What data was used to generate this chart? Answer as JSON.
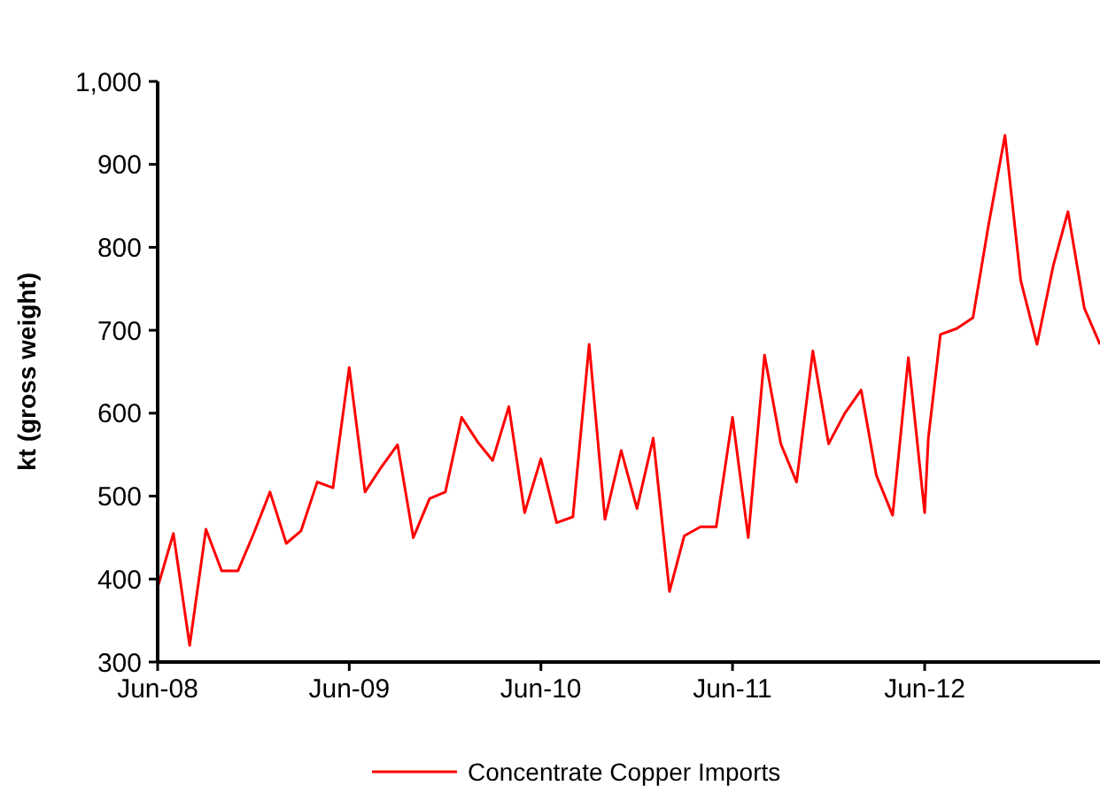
{
  "chart_data": {
    "type": "line",
    "ylabel": "kt (gross weight)",
    "x": [
      "2008-06-01",
      "2008-07-01",
      "2008-08-01",
      "2008-09-01",
      "2008-10-01",
      "2008-11-01",
      "2008-12-01",
      "2009-01-01",
      "2009-02-01",
      "2009-03-01",
      "2009-04-01",
      "2009-05-01",
      "2009-06-01",
      "2009-07-01",
      "2009-08-01",
      "2009-09-01",
      "2009-10-01",
      "2009-11-01",
      "2009-12-01",
      "2010-01-01",
      "2010-02-01",
      "2010-03-01",
      "2010-04-01",
      "2010-05-01",
      "2010-06-01",
      "2010-07-01",
      "2010-08-01",
      "2010-09-01",
      "2010-10-01",
      "2010-11-01",
      "2010-12-01",
      "2011-01-01",
      "2011-02-01",
      "2011-03-01",
      "2011-04-01",
      "2011-05-01",
      "2011-06-01",
      "2011-07-01",
      "2011-08-01",
      "2011-09-01",
      "2011-10-01",
      "2011-11-01",
      "2011-12-01",
      "2012-01-01",
      "2012-02-01",
      "2012-03-01",
      "2012-04-01",
      "2012-05-01",
      "2012-06-01",
      "2012-06-08",
      "2012-07-01",
      "2012-08-01",
      "2012-09-01",
      "2012-10-01",
      "2012-11-01",
      "2012-12-01",
      "2013-01-01",
      "2013-02-01",
      "2013-03-01",
      "2013-04-01",
      "2013-05-01"
    ],
    "series": [
      {
        "name": "Concentrate Copper Imports",
        "color": "#ff0000",
        "values": [
          390,
          455,
          320,
          460,
          410,
          410,
          455,
          505,
          443,
          458,
          517,
          510,
          655,
          505,
          535,
          562,
          450,
          497,
          505,
          595,
          565,
          543,
          608,
          480,
          545,
          468,
          475,
          683,
          472,
          555,
          485,
          570,
          385,
          452,
          463,
          463,
          595,
          450,
          670,
          563,
          517,
          675,
          563,
          600,
          628,
          525,
          477,
          667,
          480,
          570,
          695,
          702,
          715,
          828,
          935,
          760,
          683,
          778,
          843,
          727,
          683
        ]
      }
    ],
    "xlim": [
      "2008-06-01",
      "2013-05-01"
    ],
    "xticks": [
      {
        "value": "2008-06-01",
        "label": "Jun-08"
      },
      {
        "value": "2009-06-01",
        "label": "Jun-09"
      },
      {
        "value": "2010-06-01",
        "label": "Jun-10"
      },
      {
        "value": "2011-06-01",
        "label": "Jun-11"
      },
      {
        "value": "2012-06-01",
        "label": "Jun-12"
      }
    ],
    "ylim": [
      300,
      1000
    ],
    "yticks": [
      300,
      400,
      500,
      600,
      700,
      800,
      900,
      {
        "value": 1000,
        "label": "1,000"
      }
    ],
    "grid": false,
    "legend": "bottom",
    "marker": "none",
    "line_style": "solid"
  }
}
